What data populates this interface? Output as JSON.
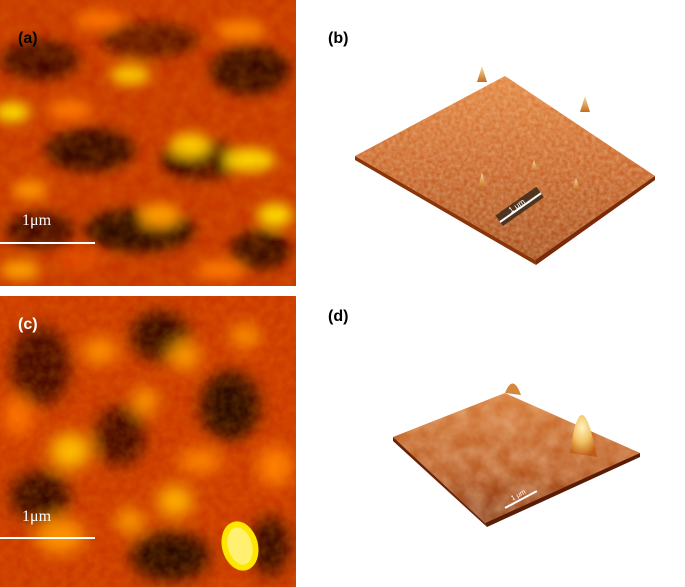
{
  "panels": {
    "a": {
      "label": "(a)",
      "scale_label": "1μm"
    },
    "b": {
      "label": "(b)",
      "scale_label": "1 μm"
    },
    "c": {
      "label": "(c)",
      "scale_label": "1μm"
    },
    "d": {
      "label": "(d)",
      "scale_label": "1 μm"
    }
  },
  "colors": {
    "background": "#ffffff",
    "map_dark": "#1a0000",
    "map_mid": "#c83200",
    "map_bright": "#ffe600",
    "surface_base": "#c4581a",
    "surface_peak": "#f0d090"
  }
}
